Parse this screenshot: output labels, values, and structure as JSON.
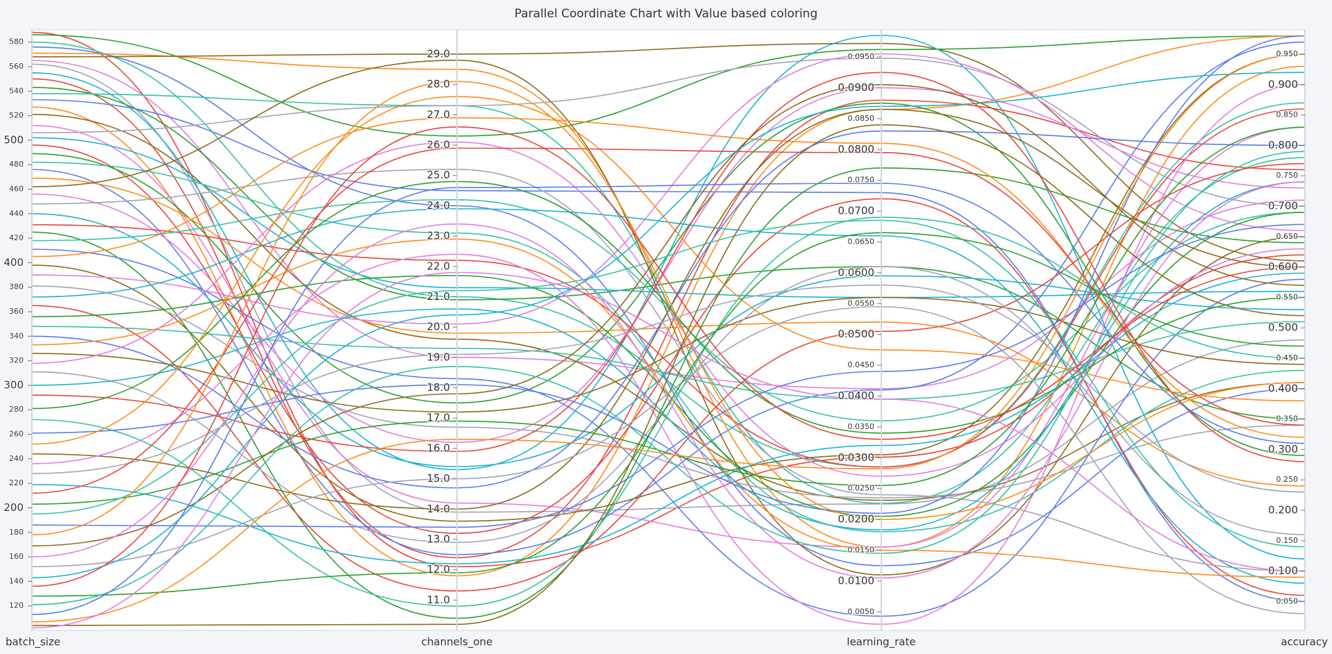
{
  "chart_data": {
    "type": "parallel",
    "title": "Parallel Coordinate Chart with Value based coloring",
    "dimensions": [
      {
        "name": "batch_size",
        "ylim": [
          100,
          590
        ],
        "yticks": [
          120,
          140,
          160,
          180,
          200,
          220,
          240,
          260,
          280,
          300,
          320,
          340,
          360,
          380,
          400,
          420,
          440,
          460,
          480,
          500,
          520,
          540,
          560,
          580
        ]
      },
      {
        "name": "channels_one",
        "ylim": [
          10,
          29.8
        ],
        "yticks": [
          {
            "value": 11,
            "label": "11.0"
          },
          {
            "value": 12,
            "label": "12.0"
          },
          {
            "value": 13,
            "label": "13.0"
          },
          {
            "value": 14,
            "label": "14.0"
          },
          {
            "value": 15,
            "label": "15.0"
          },
          {
            "value": 16,
            "label": "16.0"
          },
          {
            "value": 17,
            "label": "17.0"
          },
          {
            "value": 18,
            "label": "18.0"
          },
          {
            "value": 19,
            "label": "19.0"
          },
          {
            "value": 20,
            "label": "20.0"
          },
          {
            "value": 21,
            "label": "21.0"
          },
          {
            "value": 22,
            "label": "22.0"
          },
          {
            "value": 23,
            "label": "23.0"
          },
          {
            "value": 24,
            "label": "24.0"
          },
          {
            "value": 25,
            "label": "25.0"
          },
          {
            "value": 26,
            "label": "26.0"
          },
          {
            "value": 27,
            "label": "27.0"
          },
          {
            "value": 28,
            "label": "28.0"
          },
          {
            "value": 29,
            "label": "29.0"
          }
        ]
      },
      {
        "name": "learning_rate",
        "ylim": [
          0.002,
          0.0994
        ],
        "yticks": [
          {
            "value": 0.005,
            "label": "0.0050"
          },
          {
            "value": 0.01,
            "label": "0.0100"
          },
          {
            "value": 0.015,
            "label": "0.0150"
          },
          {
            "value": 0.02,
            "label": "0.0200"
          },
          {
            "value": 0.025,
            "label": "0.0250"
          },
          {
            "value": 0.03,
            "label": "0.0300"
          },
          {
            "value": 0.035,
            "label": "0.0350"
          },
          {
            "value": 0.04,
            "label": "0.0400"
          },
          {
            "value": 0.045,
            "label": "0.0450"
          },
          {
            "value": 0.05,
            "label": "0.0500"
          },
          {
            "value": 0.055,
            "label": "0.0550"
          },
          {
            "value": 0.06,
            "label": "0.0600"
          },
          {
            "value": 0.065,
            "label": "0.0650"
          },
          {
            "value": 0.07,
            "label": "0.0700"
          },
          {
            "value": 0.075,
            "label": "0.0750"
          },
          {
            "value": 0.08,
            "label": "0.0800"
          },
          {
            "value": 0.085,
            "label": "0.0850"
          },
          {
            "value": 0.09,
            "label": "0.0900"
          },
          {
            "value": 0.095,
            "label": "0.0950"
          }
        ]
      },
      {
        "name": "accuracy",
        "ylim": [
          0.0025,
          0.99
        ],
        "yticks": [
          {
            "value": 0.05,
            "label": "0.050"
          },
          {
            "value": 0.1,
            "label": "0.100"
          },
          {
            "value": 0.15,
            "label": "0.150"
          },
          {
            "value": 0.2,
            "label": "0.200"
          },
          {
            "value": 0.25,
            "label": "0.250"
          },
          {
            "value": 0.3,
            "label": "0.300"
          },
          {
            "value": 0.35,
            "label": "0.350"
          },
          {
            "value": 0.4,
            "label": "0.400"
          },
          {
            "value": 0.45,
            "label": "0.450"
          },
          {
            "value": 0.5,
            "label": "0.500"
          },
          {
            "value": 0.55,
            "label": "0.550"
          },
          {
            "value": 0.6,
            "label": "0.600"
          },
          {
            "value": 0.65,
            "label": "0.650"
          },
          {
            "value": 0.7,
            "label": "0.700"
          },
          {
            "value": 0.75,
            "label": "0.750"
          },
          {
            "value": 0.8,
            "label": "0.800"
          },
          {
            "value": 0.85,
            "label": "0.850"
          },
          {
            "value": 0.9,
            "label": "0.900"
          },
          {
            "value": 0.95,
            "label": "0.950"
          }
        ]
      }
    ],
    "lines": [
      {
        "color": "#e8453c",
        "values": [
          588,
          12.1,
          0.0301,
          0.62
        ]
      },
      {
        "color": "#2ca02c",
        "values": [
          586,
          26.3,
          0.0962,
          0.98
        ]
      },
      {
        "color": "#36c2a4",
        "values": [
          580,
          21.0,
          0.0285,
          0.87
        ]
      },
      {
        "color": "#5a7cec",
        "values": [
          576,
          24.0,
          0.0125,
          0.4
        ]
      },
      {
        "color": "#ff8c1a",
        "values": [
          571,
          28.5,
          0.0155,
          0.93
        ]
      },
      {
        "color": "#8b6b1c",
        "values": [
          568,
          29.0,
          0.0972,
          0.61
        ]
      },
      {
        "color": "#e27ce0",
        "values": [
          565,
          19.0,
          0.0412,
          0.71
        ]
      },
      {
        "color": "#a2a2b8",
        "values": [
          562,
          13.9,
          0.0225,
          0.48
        ]
      },
      {
        "color": "#1eb2d2",
        "values": [
          555,
          15.3,
          0.0985,
          0.12
        ]
      },
      {
        "color": "#e8453c",
        "values": [
          550,
          12.4,
          0.088,
          0.76
        ]
      },
      {
        "color": "#2ca02c",
        "values": [
          543,
          20.9,
          0.061,
          0.35
        ]
      },
      {
        "color": "#36c2a4",
        "values": [
          538,
          27.3,
          0.0226,
          0.78
        ]
      },
      {
        "color": "#5a7cec",
        "values": [
          533,
          24.5,
          0.073,
          0.05
        ]
      },
      {
        "color": "#ff8c1a",
        "values": [
          527,
          11.8,
          0.0865,
          0.98
        ]
      },
      {
        "color": "#8b6b1c",
        "values": [
          521,
          19.6,
          0.0231,
          0.41
        ]
      },
      {
        "color": "#e27ce0",
        "values": [
          512,
          14.2,
          0.0155,
          0.83
        ]
      },
      {
        "color": "#a2a2b8",
        "values": [
          506,
          27.3,
          0.0948,
          0.7
        ]
      },
      {
        "color": "#1eb2d2",
        "values": [
          502,
          21.3,
          0.056,
          0.56
        ]
      },
      {
        "color": "#e8453c",
        "values": [
          496,
          13.2,
          0.072,
          0.06
        ]
      },
      {
        "color": "#2ca02c",
        "values": [
          489,
          17.5,
          0.0875,
          0.29
        ]
      },
      {
        "color": "#36c2a4",
        "values": [
          482,
          23.1,
          0.018,
          0.43
        ]
      },
      {
        "color": "#5a7cec",
        "values": [
          476,
          12.5,
          0.041,
          0.97
        ]
      },
      {
        "color": "#ff8c1a",
        "values": [
          469,
          19.8,
          0.052,
          0.24
        ]
      },
      {
        "color": "#8b6b1c",
        "values": [
          462,
          28.8,
          0.011,
          0.65
        ]
      },
      {
        "color": "#e27ce0",
        "values": [
          456,
          16.2,
          0.09,
          0.73
        ]
      },
      {
        "color": "#a2a2b8",
        "values": [
          448,
          25.2,
          0.024,
          0.1
        ]
      },
      {
        "color": "#1eb2d2",
        "values": [
          440,
          15.4,
          0.0595,
          0.53
        ]
      },
      {
        "color": "#e8453c",
        "values": [
          431,
          22.2,
          0.0285,
          0.86
        ]
      },
      {
        "color": "#2ca02c",
        "values": [
          425,
          10.4,
          0.077,
          0.64
        ]
      },
      {
        "color": "#36c2a4",
        "values": [
          418,
          24.2,
          0.036,
          0.69
        ]
      },
      {
        "color": "#5a7cec",
        "values": [
          411,
          18.3,
          0.0043,
          0.58
        ]
      },
      {
        "color": "#ff8c1a",
        "values": [
          405,
          26.9,
          0.081,
          0.32
        ]
      },
      {
        "color": "#8b6b1c",
        "values": [
          398,
          13.6,
          0.0305,
          0.95
        ]
      },
      {
        "color": "#e27ce0",
        "values": [
          390,
          20.1,
          0.0955,
          0.66
        ]
      },
      {
        "color": "#a2a2b8",
        "values": [
          381,
          16.7,
          0.0235,
          0.34
        ]
      },
      {
        "color": "#1eb2d2",
        "values": [
          372,
          23.9,
          0.066,
          0.08
        ]
      },
      {
        "color": "#e8453c",
        "values": [
          365,
          11.3,
          0.0505,
          0.77
        ]
      },
      {
        "color": "#2ca02c",
        "values": [
          356,
          21.7,
          0.0205,
          0.69
        ]
      },
      {
        "color": "#36c2a4",
        "values": [
          348,
          19.3,
          0.0395,
          0.51
        ]
      },
      {
        "color": "#5a7cec",
        "values": [
          340,
          14.7,
          0.083,
          0.8
        ]
      },
      {
        "color": "#ff8c1a",
        "values": [
          333,
          22.9,
          0.015,
          0.09
        ]
      },
      {
        "color": "#8b6b1c",
        "values": [
          326,
          17.2,
          0.056,
          0.44
        ]
      },
      {
        "color": "#e27ce0",
        "values": [
          318,
          26.1,
          0.027,
          0.63
        ]
      },
      {
        "color": "#a2a2b8",
        "values": [
          311,
          12.9,
          0.061,
          0.16
        ]
      },
      {
        "color": "#1eb2d2",
        "values": [
          300,
          20.6,
          0.0183,
          0.74
        ]
      },
      {
        "color": "#e8453c",
        "values": [
          292,
          15.9,
          0.0925,
          0.28
        ]
      },
      {
        "color": "#2ca02c",
        "values": [
          281,
          24.8,
          0.034,
          0.55
        ]
      },
      {
        "color": "#36c2a4",
        "values": [
          272,
          10.8,
          0.069,
          0.45
        ]
      },
      {
        "color": "#5a7cec",
        "values": [
          261,
          18.1,
          0.021,
          0.98
        ]
      },
      {
        "color": "#ff8c1a",
        "values": [
          252,
          27.6,
          0.0475,
          0.38
        ]
      },
      {
        "color": "#8b6b1c",
        "values": [
          244,
          14.0,
          0.0865,
          0.6
        ]
      },
      {
        "color": "#e27ce0",
        "values": [
          236,
          22.4,
          0.003,
          0.9
        ]
      },
      {
        "color": "#a2a2b8",
        "values": [
          228,
          19.1,
          0.058,
          0.23
        ]
      },
      {
        "color": "#1eb2d2",
        "values": [
          219,
          12.2,
          0.032,
          0.59
        ]
      },
      {
        "color": "#e8453c",
        "values": [
          212,
          25.9,
          0.0795,
          0.34
        ]
      },
      {
        "color": "#2ca02c",
        "values": [
          203,
          16.9,
          0.0255,
          0.83
        ]
      },
      {
        "color": "#36c2a4",
        "values": [
          195,
          21.2,
          0.0685,
          0.14
        ]
      },
      {
        "color": "#5a7cec",
        "values": [
          186,
          13.4,
          0.044,
          0.67
        ]
      },
      {
        "color": "#ff8c1a",
        "values": [
          178,
          28.1,
          0.02,
          0.41
        ]
      },
      {
        "color": "#8b6b1c",
        "values": [
          169,
          17.8,
          0.0905,
          0.57
        ]
      },
      {
        "color": "#e27ce0",
        "values": [
          160,
          23.4,
          0.0105,
          0.74
        ]
      },
      {
        "color": "#a2a2b8",
        "values": [
          152,
          15.0,
          0.0545,
          0.03
        ]
      },
      {
        "color": "#1eb2d2",
        "values": [
          143,
          20.4,
          0.087,
          0.92
        ]
      },
      {
        "color": "#e8453c",
        "values": [
          136,
          26.6,
          0.033,
          0.6
        ]
      },
      {
        "color": "#2ca02c",
        "values": [
          128,
          11.9,
          0.0665,
          0.47
        ]
      },
      {
        "color": "#36c2a4",
        "values": [
          121,
          18.7,
          0.0145,
          0.79
        ]
      },
      {
        "color": "#5a7cec",
        "values": [
          113,
          24.6,
          0.0745,
          0.31
        ]
      },
      {
        "color": "#ff8c1a",
        "values": [
          107,
          16.3,
          0.0282,
          0.95
        ]
      },
      {
        "color": "#8b6b1c",
        "values": [
          104,
          10.2,
          0.084,
          0.52
        ]
      },
      {
        "color": "#e27ce0",
        "values": [
          102,
          21.8,
          0.0395,
          0.1
        ]
      }
    ]
  }
}
